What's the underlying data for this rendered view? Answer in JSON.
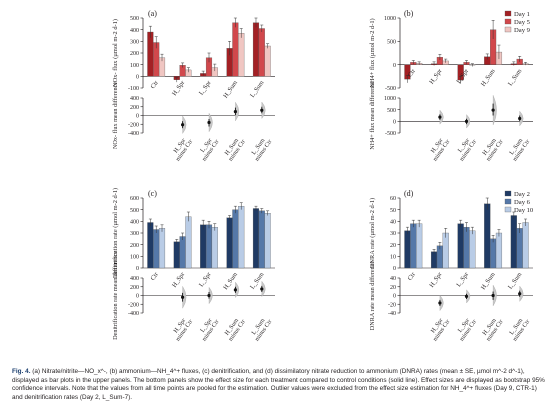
{
  "colors": {
    "day1": "#a32024",
    "day5": "#d1484c",
    "day9": "#f0c6c2",
    "day2": "#1f3a64",
    "day6": "#5578a8",
    "day10": "#b9cce6",
    "violin": "#c9c9c9",
    "axis": "#231f20"
  },
  "chart_data": [
    {
      "panel": "(a)",
      "type": "bar",
      "ylabel": "NO_x^- flux (µmol m^-2 d^-1)",
      "ylim": [
        -100,
        500
      ],
      "yticks": [
        -100,
        0,
        100,
        200,
        300,
        400,
        500
      ],
      "categories": [
        "Ctr",
        "H_Spr",
        "L_Spr",
        "H_Sum",
        "L_Sum"
      ],
      "legend": [],
      "series_colors": [
        "day1",
        "day5",
        "day9"
      ],
      "series": [
        {
          "name": "Day 1",
          "values": [
            380,
            -30,
            25,
            240,
            460
          ],
          "errors": [
            50,
            20,
            20,
            60,
            40
          ]
        },
        {
          "name": "Day 5",
          "values": [
            290,
            95,
            160,
            460,
            410
          ],
          "errors": [
            50,
            20,
            40,
            40,
            30
          ]
        },
        {
          "name": "Day 9",
          "values": [
            160,
            55,
            75,
            370,
            260
          ],
          "errors": [
            30,
            20,
            30,
            40,
            20
          ]
        }
      ],
      "effect": {
        "ylabel": "NO_x^- flux mean difference",
        "ylim": [
          -400,
          400
        ],
        "yticks": [
          -400,
          -200,
          0,
          200,
          400
        ],
        "labels": [
          "H_Spr minus Ctr",
          "L_Spr minus Ctr",
          "H_Sum minus Ctr",
          "L_Sum minus Ctr"
        ],
        "means": [
          -210,
          -160,
          90,
          120
        ],
        "ci": [
          [
            -290,
            -130
          ],
          [
            -250,
            -80
          ],
          [
            10,
            180
          ],
          [
            50,
            200
          ]
        ]
      }
    },
    {
      "panel": "(b)",
      "type": "bar",
      "ylabel": "NH_4^+ flux (µmol m^-2 d^-1)",
      "ylim": [
        -500,
        1000
      ],
      "yticks": [
        -500,
        0,
        500,
        1000
      ],
      "categories": [
        "Ctr",
        "H_Spr",
        "L_Spr",
        "H_Sum",
        "L_Sum"
      ],
      "legend": [
        "Day 1",
        "Day 5",
        "Day 9"
      ],
      "series_colors": [
        "day1",
        "day5",
        "day9"
      ],
      "series": [
        {
          "name": "Day 1",
          "values": [
            -310,
            20,
            -330,
            170,
            20
          ],
          "errors": [
            80,
            40,
            80,
            60,
            40
          ]
        },
        {
          "name": "Day 5",
          "values": [
            50,
            160,
            50,
            750,
            120
          ],
          "errors": [
            40,
            60,
            40,
            200,
            60
          ]
        },
        {
          "name": "Day 9",
          "values": [
            30,
            80,
            -10,
            270,
            20
          ],
          "errors": [
            30,
            40,
            30,
            150,
            30
          ]
        }
      ],
      "effect": {
        "ylabel": "NH_4^+ flux mean difference",
        "ylim": [
          -500,
          1000
        ],
        "yticks": [
          -500,
          0,
          500,
          1000
        ],
        "labels": [
          "H_Spr minus Ctr",
          "L_Spr minus Ctr",
          "H_Sum minus Ctr",
          "L_Sum minus Ctr"
        ],
        "means": [
          180,
          0,
          480,
          120
        ],
        "ci": [
          [
            60,
            300
          ],
          [
            -120,
            110
          ],
          [
            250,
            760
          ],
          [
            0,
            250
          ]
        ]
      }
    },
    {
      "panel": "(c)",
      "type": "bar",
      "ylabel": "Denitrification rate (µmol m^-2 d^-1)",
      "ylim": [
        0,
        600
      ],
      "yticks": [
        0,
        100,
        200,
        300,
        400,
        500,
        600
      ],
      "categories": [
        "Ctr",
        "H_Spr",
        "L_Spr",
        "H_Sum",
        "L_Sum"
      ],
      "legend": [],
      "series_colors": [
        "day2",
        "day6",
        "day10"
      ],
      "series": [
        {
          "name": "Day 2",
          "values": [
            390,
            225,
            370,
            430,
            510
          ],
          "errors": [
            30,
            20,
            40,
            20,
            20
          ]
        },
        {
          "name": "Day 6",
          "values": [
            330,
            270,
            370,
            500,
            490
          ],
          "errors": [
            30,
            30,
            30,
            30,
            20
          ]
        },
        {
          "name": "Day 10",
          "values": [
            340,
            440,
            350,
            530,
            470
          ],
          "errors": [
            30,
            40,
            30,
            30,
            20
          ]
        }
      ],
      "effect": {
        "ylabel": "Denitrification rate mean difference",
        "ylim": [
          -400,
          400
        ],
        "yticks": [
          -400,
          -200,
          0,
          200,
          400
        ],
        "labels": [
          "H_Spr minus Ctr",
          "L_Spr minus Ctr",
          "H_Sum minus Ctr",
          "L_Sum minus Ctr"
        ],
        "means": [
          -40,
          0,
          130,
          150
        ],
        "ci": [
          [
            -140,
            60
          ],
          [
            -70,
            80
          ],
          [
            60,
            200
          ],
          [
            80,
            220
          ]
        ]
      }
    },
    {
      "panel": "(d)",
      "type": "bar",
      "ylabel": "DNRA rate (µmol m^-2 d^-1)",
      "ylim": [
        0,
        60
      ],
      "yticks": [
        0,
        10,
        20,
        30,
        40,
        50,
        60
      ],
      "categories": [
        "Ctr",
        "H_Spr",
        "L_Spr",
        "H_Sum",
        "L_Sum"
      ],
      "legend": [
        "Day 2",
        "Day 6",
        "Day 10"
      ],
      "series_colors": [
        "day2",
        "day6",
        "day10"
      ],
      "series": [
        {
          "name": "Day 2",
          "values": [
            32,
            14,
            38,
            55,
            45
          ],
          "errors": [
            3,
            2,
            3,
            5,
            3
          ]
        },
        {
          "name": "Day 6",
          "values": [
            38,
            19,
            35,
            25,
            34
          ],
          "errors": [
            3,
            3,
            4,
            3,
            4
          ]
        },
        {
          "name": "Day 10",
          "values": [
            38,
            30,
            32,
            30,
            39
          ],
          "errors": [
            3,
            4,
            3,
            3,
            3
          ]
        }
      ],
      "effect": {
        "ylabel": "DNRA rate mean difference",
        "ylim": [
          -40,
          40
        ],
        "yticks": [
          -40,
          -20,
          0,
          20,
          40
        ],
        "labels": [
          "H_Spr minus Ctr",
          "L_Spr minus Ctr",
          "H_Sum minus Ctr",
          "L_Sum minus Ctr"
        ],
        "means": [
          -17,
          -2,
          0,
          4
        ],
        "ci": [
          [
            -24,
            -10
          ],
          [
            -8,
            4
          ],
          [
            -10,
            9
          ],
          [
            -3,
            11
          ]
        ]
      }
    }
  ],
  "caption": {
    "label": "Fig. 4.",
    "text": "(a) Nitrate/nitrite—NO_x^-, (b) ammonium—NH_4^+ fluxes, (c) denitrification, and (d) dissimilatory nitrate reduction to ammonium (DNRA) rates (mean ± SE, µmol m^-2 d^-1), displayed as bar plots in the upper panels. The bottom panels show the effect size for each treatment compared to control conditions (solid line). Effect sizes are displayed as bootstrap 95% confidence intervals. Note that the values from all time points are pooled for the estimation. Outlier values were excluded from the effect size estimation for NH_4^+ fluxes (Day 9, CTR-1) and denitrification rates (Day 2, L_Sum-7)."
  }
}
